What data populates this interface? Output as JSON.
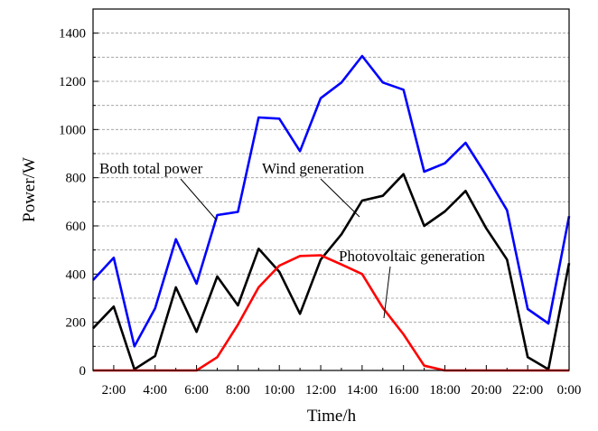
{
  "chart_data": {
    "type": "line",
    "xlabel": "Time/h",
    "ylabel": "Power/W",
    "categories": [
      null,
      "2:00",
      null,
      "4:00",
      null,
      "6:00",
      null,
      "8:00",
      null,
      "10:00",
      null,
      "12:00",
      null,
      "14:00",
      null,
      "16:00",
      null,
      "18:00",
      null,
      "20:00",
      null,
      "22:00",
      null,
      "0:00"
    ],
    "series": [
      {
        "name": "Both total power",
        "color": "#0000ff",
        "values": [
          375,
          468,
          100,
          258,
          545,
          360,
          645,
          658,
          1050,
          1045,
          910,
          1130,
          1195,
          1305,
          1195,
          1165,
          825,
          860,
          945,
          810,
          665,
          255,
          195,
          640
        ]
      },
      {
        "name": "Wind generation",
        "color": "#000000",
        "values": [
          175,
          265,
          5,
          60,
          345,
          160,
          390,
          270,
          505,
          410,
          235,
          460,
          565,
          705,
          725,
          815,
          600,
          660,
          745,
          590,
          460,
          55,
          5,
          445
        ]
      },
      {
        "name": "Photovoltaic generation",
        "color": "#ff0000",
        "values": [
          0,
          0,
          0,
          0,
          0,
          0,
          55,
          190,
          345,
          435,
          475,
          478,
          440,
          400,
          260,
          150,
          20,
          0,
          0,
          0,
          0,
          0,
          0,
          0
        ]
      }
    ],
    "ylim": [
      0,
      1500
    ],
    "yticks": [
      0,
      200,
      400,
      600,
      800,
      1000,
      1200,
      1400
    ],
    "yminorticks": [
      100,
      300,
      500,
      700,
      900,
      1100,
      1300,
      1500
    ],
    "grid": true
  }
}
